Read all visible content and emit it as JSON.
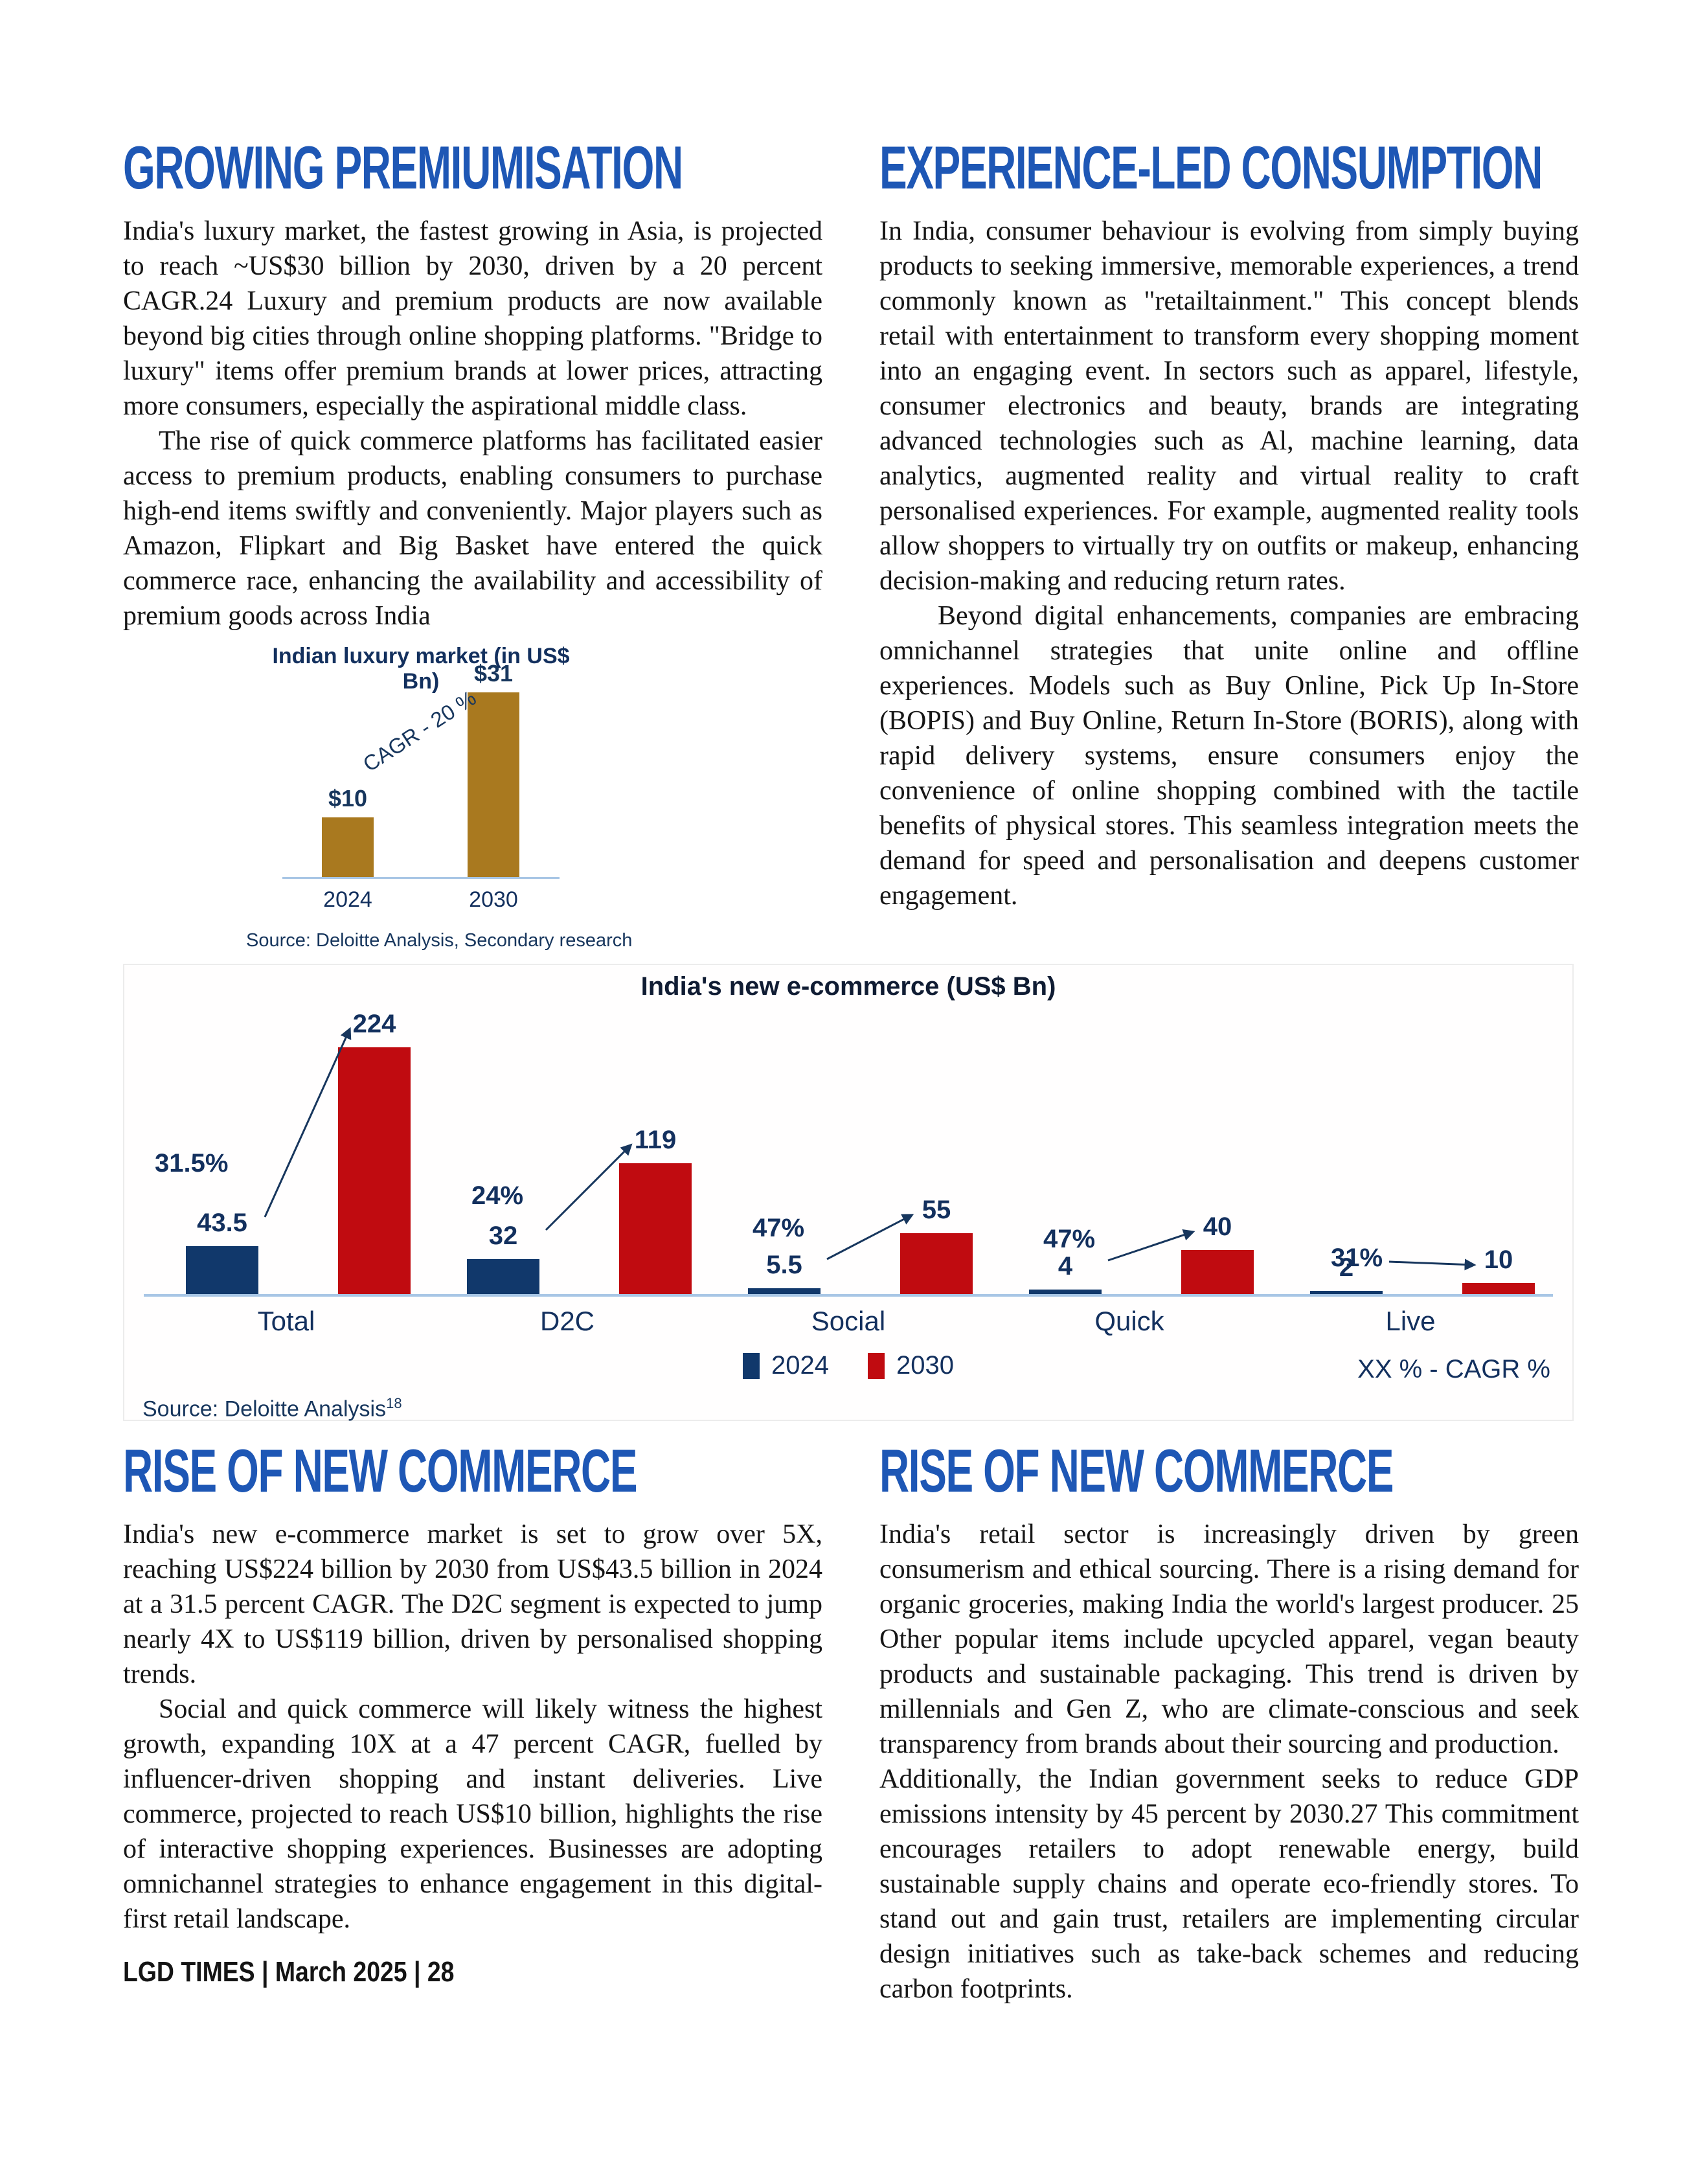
{
  "footer": {
    "text": "LGD TIMES | March 2025 | 28"
  },
  "sections": {
    "premiumisation": {
      "title": "GROWING PREMIUMISATION",
      "para1": "India's luxury market, the fastest growing in Asia, is projected to reach ~US$30 billion by 2030, driven by a 20 percent CAGR.24 Luxury and premium products are now available beyond big cities through online shopping platforms. \"Bridge to luxury\" items offer premium brands at lower prices, attracting more consumers, especially the aspirational middle class.",
      "para2": "The rise of quick commerce platforms has facilitated easier access to premium products, enabling consumers to purchase high-end items swiftly and conveniently. Major players such as Amazon, Flipkart and Big Basket have entered the quick commerce race, enhancing the availability and accessibility of premium goods across India"
    },
    "experience": {
      "title": "EXPERIENCE-LED CONSUMPTION",
      "para1": "In India, consumer behaviour is evolving from simply buying products to seeking immersive, memorable experiences, a trend commonly known as \"retailtainment.\" This concept blends retail with entertainment to transform every shopping moment into an engaging event. In sectors such as apparel, lifestyle, consumer electronics and beauty, brands are integrating advanced technologies such as Al, machine learning, data analytics, augmented reality and virtual reality to craft personalised experiences. For example, augmented reality tools allow shoppers to virtually try on outfits or makeup, enhancing decision-making and reducing return rates.",
      "para2": "Beyond digital enhancements, companies are embracing omnichannel strategies that unite online and offline experiences. Models such as Buy Online, Pick Up In-Store (BOPIS) and Buy Online, Return In-Store (BORIS), along with rapid delivery systems, ensure consumers enjoy the convenience of online shopping combined with the tactile benefits of physical stores. This seamless integration meets the demand for speed and personalisation and deepens customer engagement."
    },
    "rise_left": {
      "title": "RISE OF NEW COMMERCE",
      "para1": "India's new e-commerce market is set to grow over 5X, reaching US$224 billion by 2030 from US$43.5 billion in 2024 at a 31.5 percent CAGR. The D2C segment is expected to jump nearly 4X to US$119 billion, driven by personalised shopping trends.",
      "para2": "Social and quick commerce will likely witness the highest growth, expanding 10X at a 47 percent CAGR, fuelled by influencer-driven shopping and instant deliveries. Live commerce, projected to reach US$10 billion, highlights the rise of interactive shopping experiences. Businesses are adopting omnichannel strategies to enhance engagement in this digital-first retail landscape."
    },
    "rise_right": {
      "title": "RISE OF NEW COMMERCE",
      "para1": "India's retail sector is increasingly driven by green consumerism and ethical sourcing. There is a rising demand for organic groceries, making India the world's largest producer. 25 Other popular items include upcycled apparel, vegan beauty products and sustainable packaging. This trend is driven by millennials and Gen Z, who are climate-conscious and seek transparency from brands about their sourcing and production.",
      "para2": "Additionally, the Indian government seeks to reduce GDP emissions intensity by 45 percent by 2030.27 This commitment encourages retailers to adopt renewable energy, build sustainable supply chains and operate eco-friendly stores. To stand out and gain trust, retailers are implementing circular design initiatives such as take-back schemes and reducing carbon footprints."
    }
  },
  "chart_data": [
    {
      "id": "luxury",
      "type": "bar",
      "title": "Indian luxury market (in US$ Bn)",
      "categories": [
        "2024",
        "2030"
      ],
      "values": [
        10,
        31
      ],
      "value_labels": [
        "$10",
        "$31"
      ],
      "annotation": "CAGR - 20 %",
      "source": "Source: Deloitte Analysis, Secondary research",
      "bar_color": "#a9791f",
      "label_color": "#17365d",
      "axis_color": "#a8c6e5",
      "ylim": [
        0,
        33
      ],
      "grid": false,
      "legend_position": "none"
    },
    {
      "id": "ecommerce",
      "type": "bar",
      "title": "India's new e-commerce (US$ Bn)",
      "categories": [
        "Total",
        "D2C",
        "Social",
        "Quick",
        "Live"
      ],
      "series": [
        {
          "name": "2024",
          "color": "#11386b",
          "values": [
            43.5,
            32,
            5.5,
            4,
            2
          ]
        },
        {
          "name": "2030",
          "color": "#c00b10",
          "values": [
            224,
            119,
            55,
            40,
            10
          ]
        }
      ],
      "cagr_labels": [
        "31.5%",
        "24%",
        "47%",
        "47%",
        "31%"
      ],
      "legend": [
        "2024",
        "2030"
      ],
      "legend_note": "XX % - CAGR %",
      "source": "Source: Deloitte Analysis",
      "source_sup": "18",
      "label_color": "#13305e",
      "arrow_color": "#17365d",
      "axis_color": "#a8c6e5",
      "ylim": [
        0,
        235
      ],
      "grid": false,
      "legend_position": "bottom-center"
    }
  ]
}
